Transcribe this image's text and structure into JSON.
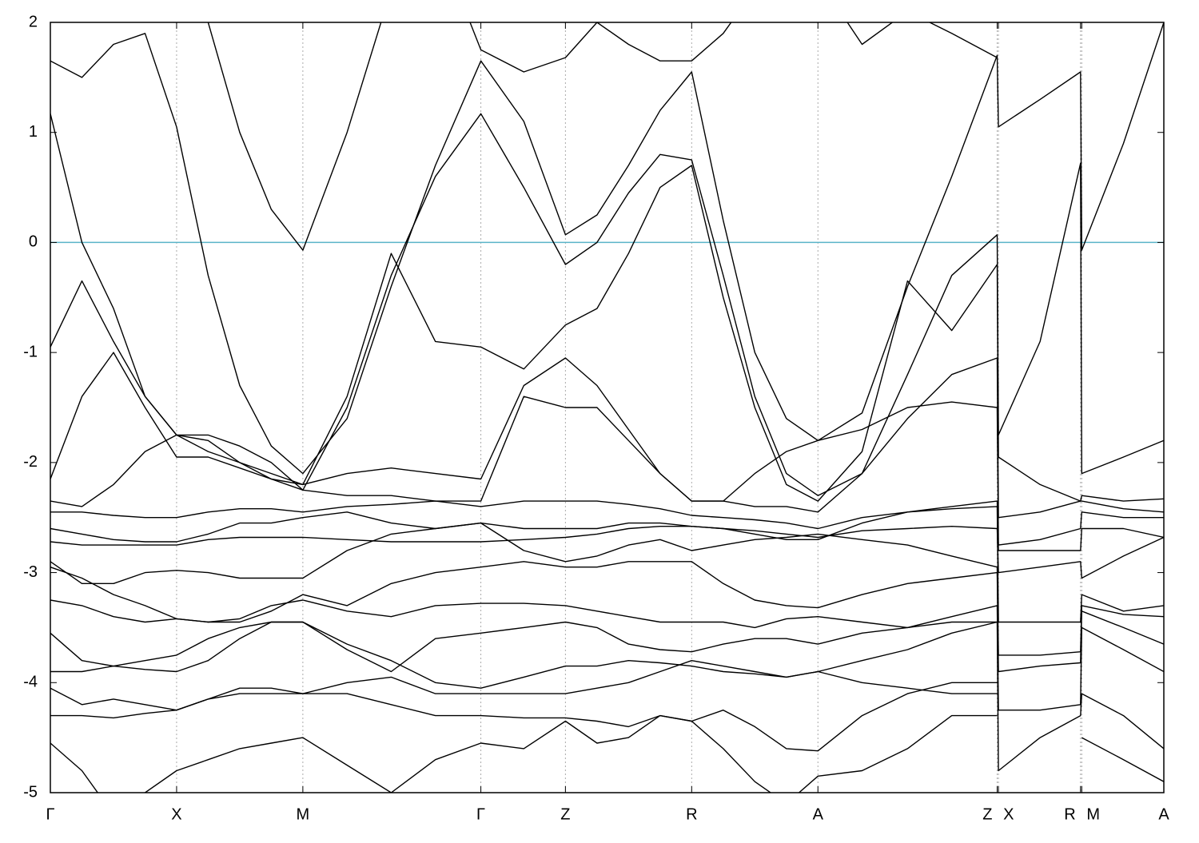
{
  "chart_data": {
    "type": "line",
    "xlim": [
      0,
      8.82
    ],
    "ylim": [
      -5,
      2
    ],
    "yticks": [
      -5,
      -4,
      -3,
      -2,
      -1,
      0,
      1,
      2
    ],
    "xticks": [
      {
        "value": 0,
        "label": "Γ"
      },
      {
        "value": 1,
        "label": "X"
      },
      {
        "value": 2,
        "label": "M"
      },
      {
        "value": 3.41,
        "label": "Γ"
      },
      {
        "value": 4.08,
        "label": "Z"
      },
      {
        "value": 5.08,
        "label": "R"
      },
      {
        "value": 6.08,
        "label": "A"
      },
      {
        "value": 7.5,
        "label": "Z"
      },
      {
        "value": 7.51,
        "label": "X"
      },
      {
        "value": 8.16,
        "label": "R"
      },
      {
        "value": 8.17,
        "label": "M"
      },
      {
        "value": 8.82,
        "label": "A"
      }
    ],
    "grid": true,
    "reference_line": {
      "value": 0,
      "color": "#5ab4c8"
    },
    "x": [
      0,
      0.25,
      0.5,
      0.75,
      1,
      1.25,
      1.5,
      1.75,
      2,
      2.35,
      2.7,
      3.05,
      3.41,
      3.75,
      4.08,
      4.33,
      4.58,
      4.83,
      5.08,
      5.33,
      5.58,
      5.83,
      6.08,
      6.43,
      6.79,
      7.14,
      7.5,
      7.51,
      7.84,
      8.16,
      8.17,
      8.5,
      8.82
    ],
    "series": [
      {
        "color": "#000000",
        "values": [
          1.65,
          1.5,
          1.8,
          1.9,
          1.05,
          -0.3,
          -1.3,
          -1.85,
          -2.1,
          -1.6,
          -0.4,
          0.7,
          1.65,
          1.1,
          0.07,
          0.25,
          0.7,
          1.2,
          1.55,
          0.2,
          -1.0,
          -1.6,
          -1.8,
          -1.55,
          -0.4,
          0.6,
          1.7,
          1.05,
          1.3,
          1.55,
          -0.07,
          0.9,
          2.0
        ]
      },
      {
        "color": "#000000",
        "values": [
          1.17,
          0.0,
          -0.6,
          -1.4,
          -1.75,
          -1.8,
          -2.0,
          -2.15,
          -2.25,
          -1.5,
          -0.3,
          0.6,
          1.17,
          0.5,
          -0.2,
          0.0,
          0.45,
          0.8,
          0.75,
          -0.3,
          -1.4,
          -2.1,
          -2.3,
          -2.1,
          -1.2,
          -0.3,
          0.07,
          -1.75,
          -0.9,
          0.72,
          -2.1,
          -1.95,
          -1.8
        ]
      },
      {
        "color": "#000000",
        "values": [
          2.6,
          2.4,
          2.5,
          2.8,
          3.0,
          2.0,
          1.0,
          0.3,
          -0.07,
          1.0,
          2.3,
          2.8,
          1.75,
          1.55,
          1.68,
          2.0,
          1.8,
          1.65,
          1.65,
          1.9,
          2.3,
          2.1,
          2.4,
          1.8,
          2.1,
          1.9,
          1.68,
          null,
          null,
          null,
          null,
          null,
          null
        ]
      },
      {
        "color": "#000000",
        "values": [
          -0.95,
          -0.35,
          -0.9,
          -1.4,
          -1.75,
          -1.9,
          -2.0,
          -2.1,
          -2.2,
          -1.4,
          -0.1,
          -0.9,
          -0.95,
          -1.15,
          -0.75,
          -0.6,
          -0.1,
          0.5,
          0.7,
          -0.5,
          -1.5,
          -2.2,
          -2.35,
          -1.9,
          -0.35,
          -0.8,
          -0.2,
          -1.95,
          -2.2,
          -2.35,
          -2.3,
          -2.35,
          -2.33
        ]
      },
      {
        "color": "#000000",
        "values": [
          -2.15,
          -1.4,
          -1.0,
          -1.5,
          -1.95,
          -1.95,
          -2.05,
          -2.15,
          -2.2,
          -2.1,
          -2.05,
          -2.1,
          -2.15,
          -1.3,
          -1.05,
          -1.3,
          -1.7,
          -2.1,
          -2.35,
          -2.35,
          -2.4,
          -2.4,
          -2.45,
          -2.1,
          -1.6,
          -1.2,
          -1.05,
          -2.5,
          -2.45,
          -2.35,
          -2.35,
          -2.42,
          -2.45
        ]
      },
      {
        "color": "#000000",
        "values": [
          -2.35,
          -2.4,
          -2.2,
          -1.9,
          -1.75,
          -1.75,
          -1.85,
          -2.0,
          -2.25,
          -2.3,
          -2.3,
          -2.35,
          -2.35,
          -1.4,
          -1.5,
          -1.5,
          -1.8,
          -2.1,
          -2.35,
          -2.35,
          -2.1,
          -1.9,
          -1.8,
          -1.7,
          -1.5,
          -1.45,
          -1.5,
          -2.75,
          -2.7,
          -2.6,
          -2.45,
          -2.5,
          -2.5
        ]
      },
      {
        "color": "#000000",
        "values": [
          -2.45,
          -2.45,
          -2.48,
          -2.5,
          -2.5,
          -2.45,
          -2.42,
          -2.42,
          -2.45,
          -2.4,
          -2.38,
          -2.35,
          -2.4,
          -2.35,
          -2.35,
          -2.35,
          -2.38,
          -2.42,
          -2.48,
          -2.5,
          -2.52,
          -2.55,
          -2.6,
          -2.5,
          -2.45,
          -2.4,
          -2.35,
          -2.8,
          -2.8,
          -2.8,
          -2.6,
          -2.6,
          -2.68
        ]
      },
      {
        "color": "#000000",
        "values": [
          -2.6,
          -2.65,
          -2.7,
          -2.72,
          -2.72,
          -2.65,
          -2.55,
          -2.55,
          -2.5,
          -2.45,
          -2.55,
          -2.6,
          -2.55,
          -2.6,
          -2.6,
          -2.6,
          -2.55,
          -2.55,
          -2.58,
          -2.6,
          -2.62,
          -2.65,
          -2.68,
          -2.62,
          -2.6,
          -2.58,
          -2.6,
          -3.0,
          -2.95,
          -2.9,
          -3.05,
          -2.85,
          -2.68
        ]
      },
      {
        "color": "#000000",
        "values": [
          -2.72,
          -2.75,
          -2.75,
          -2.75,
          -2.75,
          -2.7,
          -2.68,
          -2.68,
          -2.68,
          -2.7,
          -2.72,
          -2.72,
          -2.72,
          -2.7,
          -2.68,
          -2.65,
          -2.6,
          -2.58,
          -2.58,
          -2.6,
          -2.65,
          -2.7,
          -2.7,
          -2.55,
          -2.45,
          -2.42,
          -2.4,
          -3.45,
          -3.45,
          -3.45,
          -3.2,
          -3.35,
          -3.3
        ]
      },
      {
        "color": "#000000",
        "values": [
          -2.9,
          -3.1,
          -3.1,
          -3.0,
          -2.98,
          -3.0,
          -3.05,
          -3.05,
          -3.05,
          -2.8,
          -2.65,
          -2.6,
          -2.55,
          -2.8,
          -2.9,
          -2.85,
          -2.75,
          -2.7,
          -2.8,
          -2.75,
          -2.7,
          -2.68,
          -2.65,
          -2.7,
          -2.75,
          -2.85,
          -2.95,
          -3.75,
          -3.75,
          -3.72,
          -3.3,
          -3.38,
          -3.4
        ]
      },
      {
        "color": "#000000",
        "values": [
          -2.95,
          -3.05,
          -3.2,
          -3.3,
          -3.42,
          -3.45,
          -3.45,
          -3.35,
          -3.2,
          -3.3,
          -3.1,
          -3.0,
          -2.95,
          -2.9,
          -2.95,
          -2.95,
          -2.9,
          -2.9,
          -2.9,
          -3.1,
          -3.25,
          -3.3,
          -3.32,
          -3.2,
          -3.1,
          -3.05,
          -3.0,
          -3.9,
          -3.85,
          -3.82,
          -3.35,
          -3.5,
          -3.65
        ]
      },
      {
        "color": "#000000",
        "values": [
          -3.25,
          -3.3,
          -3.4,
          -3.45,
          -3.42,
          -3.45,
          -3.42,
          -3.3,
          -3.25,
          -3.35,
          -3.4,
          -3.3,
          -3.28,
          -3.28,
          -3.3,
          -3.35,
          -3.4,
          -3.45,
          -3.45,
          -3.45,
          -3.5,
          -3.42,
          -3.4,
          -3.45,
          -3.5,
          -3.4,
          -3.3,
          -4.25,
          -4.25,
          -4.2,
          -3.5,
          -3.7,
          -3.9
        ]
      },
      {
        "color": "#000000",
        "values": [
          -3.55,
          -3.8,
          -3.85,
          -3.8,
          -3.75,
          -3.6,
          -3.5,
          -3.45,
          -3.45,
          -3.7,
          -3.9,
          -3.6,
          -3.55,
          -3.5,
          -3.45,
          -3.5,
          -3.65,
          -3.7,
          -3.72,
          -3.65,
          -3.6,
          -3.6,
          -3.65,
          -3.55,
          -3.5,
          -3.45,
          -3.45,
          -4.8,
          -4.5,
          -4.3,
          -4.1,
          -4.3,
          -4.6
        ]
      },
      {
        "color": "#000000",
        "values": [
          -3.9,
          -3.9,
          -3.85,
          -3.88,
          -3.9,
          -3.8,
          -3.6,
          -3.45,
          -3.45,
          -3.65,
          -3.8,
          -4.0,
          -4.05,
          -3.95,
          -3.85,
          -3.85,
          -3.8,
          -3.82,
          -3.85,
          -3.9,
          -3.92,
          -3.95,
          -3.9,
          -3.8,
          -3.7,
          -3.55,
          -3.45,
          null,
          null,
          null,
          -4.5,
          -4.7,
          -4.9
        ]
      },
      {
        "color": "#000000",
        "values": [
          -4.05,
          -4.2,
          -4.15,
          -4.2,
          -4.25,
          -4.15,
          -4.05,
          -4.05,
          -4.1,
          -4.0,
          -3.95,
          -4.1,
          -4.1,
          -4.1,
          -4.1,
          -4.05,
          -4.0,
          -3.9,
          -3.8,
          -3.85,
          -3.9,
          -3.95,
          -3.9,
          -4.0,
          -4.05,
          -4.1,
          -4.1,
          null,
          null,
          null,
          null,
          null,
          null
        ]
      },
      {
        "color": "#000000",
        "values": [
          -4.3,
          -4.3,
          -4.32,
          -4.28,
          -4.25,
          -4.15,
          -4.1,
          -4.1,
          -4.1,
          -4.1,
          -4.2,
          -4.3,
          -4.3,
          -4.32,
          -4.32,
          -4.35,
          -4.4,
          -4.3,
          -4.35,
          -4.25,
          -4.4,
          -4.6,
          -4.62,
          -4.3,
          -4.1,
          -4.0,
          -4.0,
          null,
          null,
          null,
          null,
          null,
          null
        ]
      },
      {
        "color": "#000000",
        "values": [
          -4.55,
          -4.8,
          -5.2,
          -5.0,
          -4.8,
          -4.7,
          -4.6,
          -4.55,
          -4.5,
          -4.75,
          -5.0,
          -4.7,
          -4.55,
          -4.6,
          -4.35,
          -4.55,
          -4.5,
          -4.3,
          -4.35,
          -4.6,
          -4.9,
          -5.1,
          -4.85,
          -4.8,
          -4.6,
          -4.3,
          -4.3,
          null,
          null,
          null,
          null,
          null,
          null
        ]
      }
    ]
  }
}
